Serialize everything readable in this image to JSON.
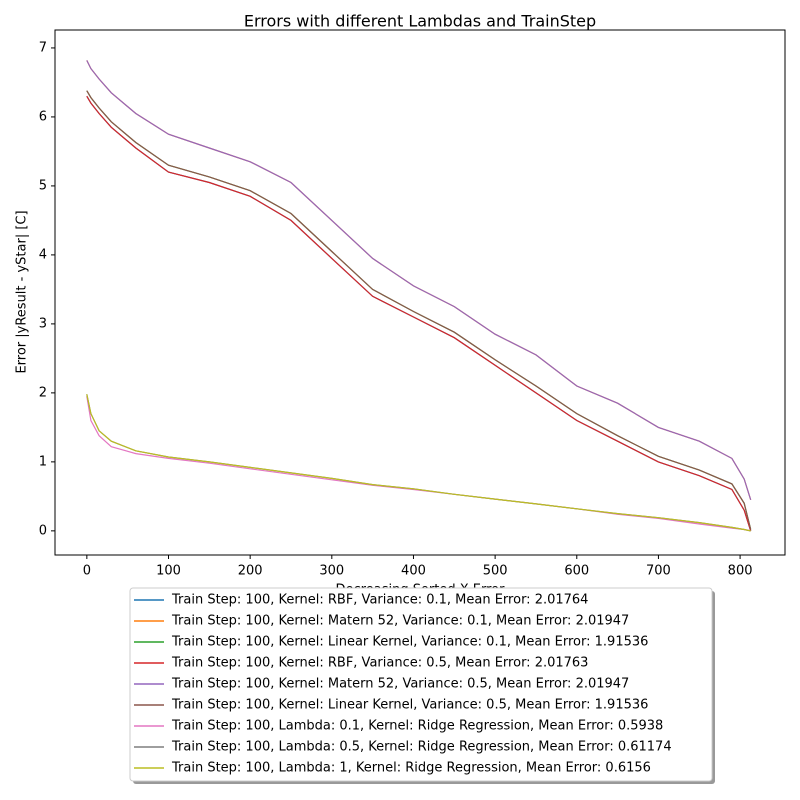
{
  "chart_data": {
    "type": "line",
    "title": "Errors with different Lambdas and TrainStep",
    "xlabel": "Decreasing Sorted X Error",
    "ylabel": "Error |yResult - yStar| [C]",
    "x": [
      0,
      5,
      15,
      30,
      60,
      100,
      150,
      200,
      250,
      300,
      350,
      400,
      450,
      500,
      550,
      600,
      650,
      700,
      750,
      790,
      805,
      813
    ],
    "xlim": [
      -39,
      855
    ],
    "xticks": [
      0,
      100,
      200,
      300,
      400,
      500,
      600,
      700,
      800
    ],
    "ylim": [
      -0.35,
      7.26
    ],
    "yticks": [
      0,
      1,
      2,
      3,
      4,
      5,
      6,
      7
    ],
    "series": [
      {
        "name": "Train Step: 100, Kernel: RBF, Variance: 0.1, Mean Error: 2.01764",
        "color": "#1f77b4",
        "values": [
          6.3,
          6.2,
          6.05,
          5.85,
          5.55,
          5.2,
          5.05,
          4.85,
          4.5,
          3.95,
          3.4,
          3.1,
          2.8,
          2.4,
          2.0,
          1.6,
          1.3,
          1.0,
          0.8,
          0.6,
          0.3,
          0
        ]
      },
      {
        "name": "Train Step: 100, Kernel: Matern 52, Variance: 0.1, Mean Error: 2.01947",
        "color": "#ff7f0e",
        "values": [
          6.82,
          6.7,
          6.55,
          6.35,
          6.05,
          5.75,
          5.55,
          5.35,
          5.05,
          4.5,
          3.95,
          3.55,
          3.25,
          2.85,
          2.55,
          2.1,
          1.85,
          1.5,
          1.3,
          1.05,
          0.75,
          0.45
        ]
      },
      {
        "name": "Train Step: 100, Kernel: Linear Kernel, Variance: 0.1, Mean Error: 1.91536",
        "color": "#2ca02c",
        "values": [
          6.38,
          6.28,
          6.13,
          5.93,
          5.63,
          5.3,
          5.13,
          4.93,
          4.6,
          4.05,
          3.5,
          3.18,
          2.88,
          2.48,
          2.1,
          1.7,
          1.38,
          1.08,
          0.88,
          0.68,
          0.4,
          0.02
        ]
      },
      {
        "name": "Train Step: 100, Kernel: RBF, Variance: 0.5, Mean Error: 2.01763",
        "color": "#d62728",
        "values": [
          6.3,
          6.2,
          6.05,
          5.85,
          5.55,
          5.2,
          5.05,
          4.85,
          4.5,
          3.95,
          3.4,
          3.1,
          2.8,
          2.4,
          2.0,
          1.6,
          1.3,
          1.0,
          0.8,
          0.6,
          0.3,
          0
        ]
      },
      {
        "name": "Train Step: 100, Kernel: Matern 52, Variance: 0.5, Mean Error: 2.01947",
        "color": "#9467bd",
        "values": [
          6.82,
          6.7,
          6.55,
          6.35,
          6.05,
          5.75,
          5.55,
          5.35,
          5.05,
          4.5,
          3.95,
          3.55,
          3.25,
          2.85,
          2.55,
          2.1,
          1.85,
          1.5,
          1.3,
          1.05,
          0.75,
          0.45
        ]
      },
      {
        "name": "Train Step: 100, Kernel: Linear Kernel, Variance: 0.5, Mean Error: 1.91536",
        "color": "#8c564b",
        "values": [
          6.38,
          6.28,
          6.13,
          5.93,
          5.63,
          5.3,
          5.13,
          4.93,
          4.6,
          4.05,
          3.5,
          3.18,
          2.88,
          2.48,
          2.1,
          1.7,
          1.38,
          1.08,
          0.88,
          0.68,
          0.4,
          0.02
        ]
      },
      {
        "name": "Train Step: 100, Lambda: 0.1, Kernel: Ridge Regression, Mean Error: 0.5938",
        "color": "#e377c2",
        "values": [
          1.95,
          1.6,
          1.38,
          1.22,
          1.12,
          1.05,
          0.98,
          0.9,
          0.82,
          0.74,
          0.66,
          0.6,
          0.53,
          0.46,
          0.39,
          0.32,
          0.24,
          0.18,
          0.1,
          0.04,
          0.02,
          0
        ]
      },
      {
        "name": "Train Step: 100, Lambda: 0.5, Kernel: Ridge Regression, Mean Error: 0.61174",
        "color": "#7f7f7f",
        "values": [
          1.98,
          1.7,
          1.45,
          1.3,
          1.16,
          1.07,
          1.0,
          0.92,
          0.84,
          0.76,
          0.67,
          0.61,
          0.53,
          0.46,
          0.39,
          0.32,
          0.25,
          0.19,
          0.12,
          0.05,
          0.02,
          0
        ]
      },
      {
        "name": "Train Step: 100, Lambda: 1, Kernel: Ridge Regression, Mean Error: 0.6156",
        "color": "#bcbd22",
        "values": [
          1.98,
          1.7,
          1.45,
          1.3,
          1.16,
          1.07,
          1.0,
          0.92,
          0.84,
          0.76,
          0.67,
          0.61,
          0.53,
          0.46,
          0.39,
          0.32,
          0.25,
          0.19,
          0.12,
          0.05,
          0.02,
          0
        ]
      }
    ]
  }
}
